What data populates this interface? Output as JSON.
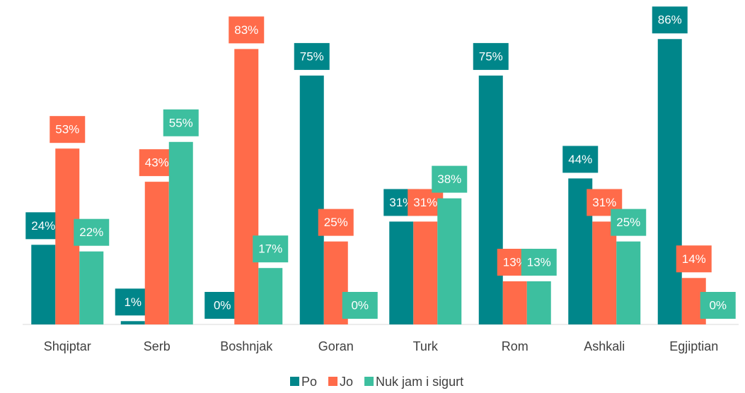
{
  "chart_data": {
    "type": "bar",
    "categories": [
      "Shqiptar",
      "Serb",
      "Boshnjak",
      "Goran",
      "Turk",
      "Rom",
      "Ashkali",
      "Egjiptian"
    ],
    "series": [
      {
        "name": "Po",
        "color": "#00868a",
        "values": [
          24,
          1,
          0,
          75,
          31,
          75,
          44,
          86
        ],
        "value_labels": [
          "24%",
          "1%",
          "0%",
          "75%",
          "31%",
          "75%",
          "44%",
          "86%"
        ]
      },
      {
        "name": "Jo",
        "color": "#ff6b4a",
        "values": [
          53,
          43,
          83,
          25,
          31,
          13,
          31,
          14
        ],
        "value_labels": [
          "53%",
          "43%",
          "83%",
          "25%",
          "31%",
          "13%",
          "31%",
          "14%"
        ]
      },
      {
        "name": "Nuk jam i sigurt",
        "color": "#3dbf9f",
        "values": [
          22,
          55,
          17,
          0,
          38,
          13,
          25,
          0
        ],
        "value_labels": [
          "22%",
          "55%",
          "17%",
          "0%",
          "38%",
          "13%",
          "25%",
          "0%"
        ]
      }
    ],
    "ylim": [
      0,
      95
    ],
    "legend": "bottom"
  }
}
